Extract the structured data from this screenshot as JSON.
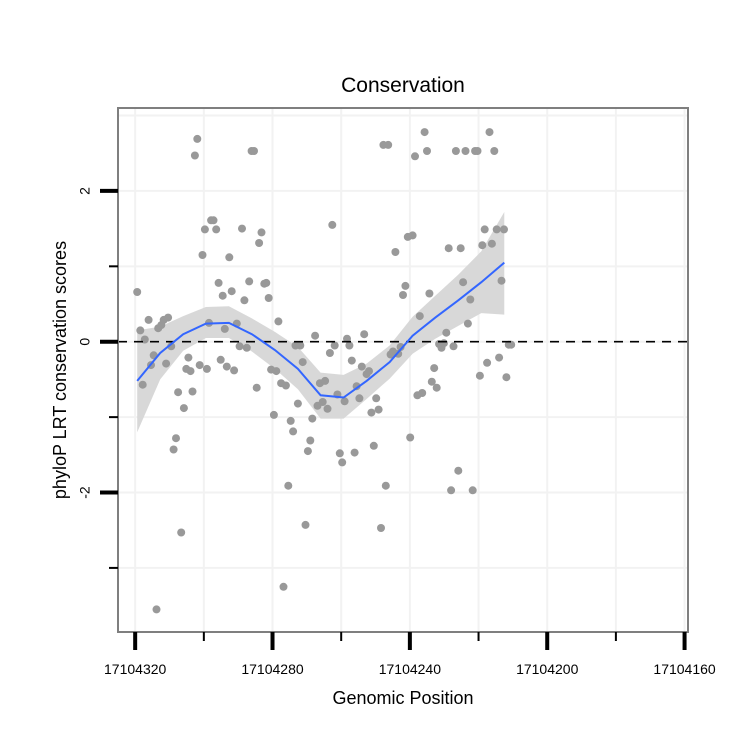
{
  "chart_data": {
    "type": "scatter",
    "title": "Conservation",
    "xlabel": "Genomic Position",
    "ylabel": "phyloP LRT conservation scores",
    "x_reversed": true,
    "xlim": [
      17104325,
      17104159
    ],
    "ylim": [
      -3.85,
      3.1
    ],
    "x_ticks": [
      17104320,
      17104280,
      17104240,
      17104200,
      17104160
    ],
    "x_tick_labels": [
      "17104320",
      "17104280",
      "17104240",
      "17104200",
      "17104160"
    ],
    "y_ticks": [
      -2,
      0,
      2
    ],
    "y_tick_labels": [
      "-2",
      "0",
      "2"
    ],
    "reference_line": {
      "y": 0,
      "style": "dashed"
    },
    "colors": {
      "points": "#999999",
      "smooth": "#3366ff",
      "ribbon": "#d6d6d6",
      "grid": "#f2f2f2",
      "panel_border": "#7f7f7f",
      "reference": "#000000"
    },
    "series": [
      {
        "name": "scores",
        "points": [
          [
            17104319.4,
            0.66
          ],
          [
            17104318.5,
            0.15
          ],
          [
            17104317.8,
            -0.57
          ],
          [
            17104317.2,
            0.03
          ],
          [
            17104316.1,
            0.29
          ],
          [
            17104315.4,
            -0.31
          ],
          [
            17104314.6,
            -0.18
          ],
          [
            17104313.8,
            -3.55
          ],
          [
            17104313.3,
            0.18
          ],
          [
            17104312.4,
            0.22
          ],
          [
            17104311.7,
            0.29
          ],
          [
            17104311.0,
            -0.29
          ],
          [
            17104310.4,
            0.32
          ],
          [
            17104309.5,
            -0.06
          ],
          [
            17104308.8,
            -1.43
          ],
          [
            17104308.1,
            -1.28
          ],
          [
            17104307.5,
            -0.67
          ],
          [
            17104306.6,
            -2.53
          ],
          [
            17104305.8,
            -0.88
          ],
          [
            17104305.1,
            -0.36
          ],
          [
            17104304.5,
            -0.21
          ],
          [
            17104303.9,
            -0.39
          ],
          [
            17104303.3,
            -0.66
          ],
          [
            17104302.6,
            2.47
          ],
          [
            17104301.9,
            2.69
          ],
          [
            17104301.2,
            -0.31
          ],
          [
            17104300.4,
            1.15
          ],
          [
            17104299.7,
            1.49
          ],
          [
            17104299.1,
            -0.36
          ],
          [
            17104298.5,
            0.25
          ],
          [
            17104297.9,
            1.61
          ],
          [
            17104297.2,
            1.61
          ],
          [
            17104296.4,
            1.49
          ],
          [
            17104295.7,
            0.78
          ],
          [
            17104295.1,
            -0.24
          ],
          [
            17104294.5,
            0.61
          ],
          [
            17104293.9,
            0.17
          ],
          [
            17104293.3,
            -0.33
          ],
          [
            17104292.6,
            1.12
          ],
          [
            17104291.9,
            0.67
          ],
          [
            17104291.2,
            -0.38
          ],
          [
            17104290.4,
            0.24
          ],
          [
            17104289.6,
            -0.06
          ],
          [
            17104288.9,
            1.5
          ],
          [
            17104288.2,
            0.55
          ],
          [
            17104287.5,
            -0.08
          ],
          [
            17104286.8,
            0.8
          ],
          [
            17104286.1,
            2.53
          ],
          [
            17104285.4,
            2.53
          ],
          [
            17104284.6,
            -0.61
          ],
          [
            17104283.9,
            1.31
          ],
          [
            17104283.2,
            1.45
          ],
          [
            17104282.4,
            0.77
          ],
          [
            17104281.8,
            0.78
          ],
          [
            17104281.1,
            0.58
          ],
          [
            17104280.4,
            -0.37
          ],
          [
            17104279.6,
            -0.97
          ],
          [
            17104278.9,
            -0.39
          ],
          [
            17104278.3,
            0.27
          ],
          [
            17104277.5,
            -0.55
          ],
          [
            17104276.8,
            -3.25
          ],
          [
            17104276.1,
            -0.58
          ],
          [
            17104275.4,
            -1.91
          ],
          [
            17104274.7,
            -1.05
          ],
          [
            17104274.0,
            -1.19
          ],
          [
            17104273.3,
            -0.05
          ],
          [
            17104272.6,
            -0.82
          ],
          [
            17104271.9,
            -0.05
          ],
          [
            17104271.2,
            -0.27
          ],
          [
            17104270.4,
            -2.43
          ],
          [
            17104269.7,
            -1.45
          ],
          [
            17104269.0,
            -1.31
          ],
          [
            17104268.4,
            -1.02
          ],
          [
            17104267.6,
            0.08
          ],
          [
            17104266.9,
            -0.85
          ],
          [
            17104266.2,
            -0.55
          ],
          [
            17104265.4,
            -0.8
          ],
          [
            17104264.7,
            -0.52
          ],
          [
            17104264.0,
            -0.89
          ],
          [
            17104263.3,
            -0.15
          ],
          [
            17104262.6,
            1.55
          ],
          [
            17104261.9,
            -0.05
          ],
          [
            17104261.1,
            -0.7
          ],
          [
            17104260.4,
            -1.48
          ],
          [
            17104259.7,
            -1.6
          ],
          [
            17104259.0,
            -0.79
          ],
          [
            17104258.3,
            0.04
          ],
          [
            17104257.6,
            -0.05
          ],
          [
            17104256.9,
            -0.25
          ],
          [
            17104256.1,
            -1.47
          ],
          [
            17104255.5,
            -0.59
          ],
          [
            17104254.7,
            -0.75
          ],
          [
            17104254.0,
            -0.33
          ],
          [
            17104253.3,
            0.1
          ],
          [
            17104252.6,
            -0.43
          ],
          [
            17104251.9,
            -0.39
          ],
          [
            17104251.2,
            -0.94
          ],
          [
            17104250.5,
            -1.38
          ],
          [
            17104249.8,
            -0.75
          ],
          [
            17104249.1,
            -0.9
          ],
          [
            17104248.4,
            -2.47
          ],
          [
            17104247.7,
            2.61
          ],
          [
            17104247.0,
            -1.91
          ],
          [
            17104246.3,
            2.61
          ],
          [
            17104245.6,
            -0.17
          ],
          [
            17104244.9,
            -0.13
          ],
          [
            17104244.2,
            1.19
          ],
          [
            17104243.4,
            -0.16
          ],
          [
            17104242.7,
            -0.07
          ],
          [
            17104242.0,
            0.62
          ],
          [
            17104241.3,
            0.74
          ],
          [
            17104240.6,
            1.39
          ],
          [
            17104239.9,
            -1.27
          ],
          [
            17104239.2,
            1.41
          ],
          [
            17104238.5,
            2.46
          ],
          [
            17104237.8,
            -0.71
          ],
          [
            17104237.1,
            0.34
          ],
          [
            17104236.4,
            -0.68
          ],
          [
            17104235.7,
            2.78
          ],
          [
            17104235.0,
            2.53
          ],
          [
            17104234.3,
            0.64
          ],
          [
            17104233.6,
            -0.53
          ],
          [
            17104232.9,
            -0.35
          ],
          [
            17104232.2,
            -0.61
          ],
          [
            17104231.5,
            -0.03
          ],
          [
            17104230.8,
            -0.08
          ],
          [
            17104230.1,
            -0.02
          ],
          [
            17104229.4,
            0.12
          ],
          [
            17104228.7,
            1.24
          ],
          [
            17104228.0,
            -1.97
          ],
          [
            17104227.3,
            -0.06
          ],
          [
            17104226.6,
            2.53
          ],
          [
            17104225.9,
            -1.71
          ],
          [
            17104225.2,
            1.24
          ],
          [
            17104224.5,
            0.79
          ],
          [
            17104223.8,
            2.53
          ],
          [
            17104223.1,
            0.24
          ],
          [
            17104222.4,
            0.56
          ],
          [
            17104221.7,
            -1.97
          ],
          [
            17104221.0,
            2.53
          ],
          [
            17104220.3,
            2.53
          ],
          [
            17104219.6,
            -0.45
          ],
          [
            17104218.9,
            1.28
          ],
          [
            17104218.2,
            1.49
          ],
          [
            17104217.5,
            -0.28
          ],
          [
            17104216.8,
            2.78
          ],
          [
            17104216.1,
            1.3
          ],
          [
            17104215.4,
            2.53
          ],
          [
            17104214.7,
            1.49
          ],
          [
            17104214.0,
            -0.21
          ],
          [
            17104213.3,
            0.81
          ],
          [
            17104212.6,
            1.49
          ],
          [
            17104211.9,
            -0.47
          ],
          [
            17104211.2,
            -0.04
          ],
          [
            17104210.5,
            -0.04
          ]
        ]
      }
    ],
    "smooth": {
      "method": "loess",
      "x": [
        17104319.4,
        17104312.7,
        17104306.0,
        17104299.4,
        17104292.7,
        17104286.0,
        17104279.3,
        17104272.6,
        17104266.0,
        17104259.3,
        17104252.6,
        17104245.9,
        17104239.2,
        17104232.6,
        17104225.9,
        17104219.2,
        17104212.5
      ],
      "y": [
        -0.52,
        -0.15,
        0.1,
        0.24,
        0.25,
        0.1,
        -0.11,
        -0.36,
        -0.71,
        -0.74,
        -0.52,
        -0.27,
        0.08,
        0.32,
        0.55,
        0.79,
        1.05
      ],
      "lower": [
        -1.2,
        -0.5,
        -0.12,
        0.05,
        0.05,
        -0.13,
        -0.36,
        -0.63,
        -1.02,
        -1.02,
        -0.76,
        -0.49,
        -0.16,
        0.04,
        0.21,
        0.38,
        0.36
      ],
      "upper": [
        0.15,
        0.2,
        0.34,
        0.46,
        0.47,
        0.31,
        0.13,
        -0.07,
        -0.41,
        -0.44,
        -0.29,
        -0.05,
        0.33,
        0.61,
        0.89,
        1.2,
        1.72
      ]
    }
  }
}
